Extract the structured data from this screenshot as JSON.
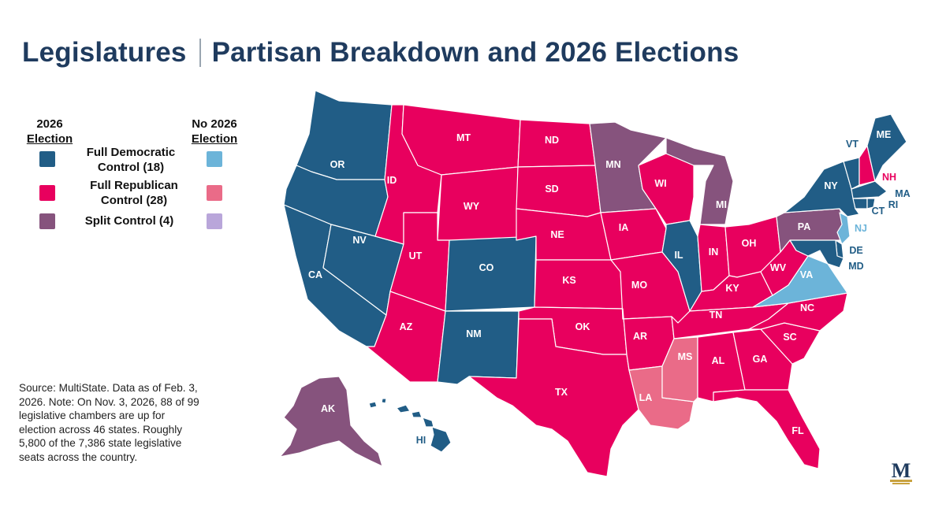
{
  "header": {
    "title_left": "Legislatures",
    "title_right": "Partisan Breakdown and 2026 Elections"
  },
  "legend": {
    "col1_header": [
      "2026",
      "Election"
    ],
    "col2_header": [
      "No 2026",
      "Election"
    ],
    "items": [
      {
        "label_lines": [
          "Full Democratic",
          "Control (18)"
        ],
        "color_election": "#215d86",
        "color_no_election": "#6cb4d9"
      },
      {
        "label_lines": [
          "Full Republican",
          "Control (28)"
        ],
        "color_election": "#e8005e",
        "color_no_election": "#ea6b88"
      },
      {
        "label_lines": [
          "Split Control (4)"
        ],
        "color_election": "#86537d",
        "color_no_election": "#b9a6da"
      }
    ]
  },
  "source_lines": [
    "Source: MultiState. Data as of Feb. 3,",
    "2026. Note: On Nov. 3, 2026, 88 of 99",
    "legislative chambers are up for",
    "election across 46 states.  Roughly",
    "5,800 of the 7,386 state legislative",
    "seats across the country."
  ],
  "colors": {
    "dem": "#215d86",
    "rep": "#e8005e",
    "split": "#86537d",
    "dem_no": "#6cb4d9",
    "rep_no": "#ea6b88",
    "split_no": "#b9a6da",
    "title": "#1f3b5e",
    "logo_gold": "#c9a23f"
  },
  "logo_letter": "M",
  "states": [
    {
      "abbr": "WA",
      "control": "dem",
      "label": ""
    },
    {
      "abbr": "OR",
      "control": "dem",
      "label": "OR"
    },
    {
      "abbr": "CA",
      "control": "dem",
      "label": "CA"
    },
    {
      "abbr": "NV",
      "control": "dem",
      "label": "NV"
    },
    {
      "abbr": "ID",
      "control": "rep",
      "label": "ID"
    },
    {
      "abbr": "MT",
      "control": "rep",
      "label": "MT"
    },
    {
      "abbr": "WY",
      "control": "rep",
      "label": "WY"
    },
    {
      "abbr": "UT",
      "control": "rep",
      "label": "UT"
    },
    {
      "abbr": "AZ",
      "control": "rep",
      "label": "AZ"
    },
    {
      "abbr": "CO",
      "control": "dem",
      "label": "CO"
    },
    {
      "abbr": "NM",
      "control": "dem",
      "label": "NM"
    },
    {
      "abbr": "ND",
      "control": "rep",
      "label": "ND"
    },
    {
      "abbr": "SD",
      "control": "rep",
      "label": "SD"
    },
    {
      "abbr": "NE",
      "control": "rep",
      "label": "NE"
    },
    {
      "abbr": "KS",
      "control": "rep",
      "label": "KS"
    },
    {
      "abbr": "OK",
      "control": "rep",
      "label": "OK"
    },
    {
      "abbr": "TX",
      "control": "rep",
      "label": "TX"
    },
    {
      "abbr": "MN",
      "control": "split",
      "label": "MN"
    },
    {
      "abbr": "IA",
      "control": "rep",
      "label": "IA"
    },
    {
      "abbr": "MO",
      "control": "rep",
      "label": "MO"
    },
    {
      "abbr": "AR",
      "control": "rep",
      "label": "AR"
    },
    {
      "abbr": "LA",
      "control": "rep_no",
      "label": "LA"
    },
    {
      "abbr": "WI",
      "control": "rep",
      "label": "WI"
    },
    {
      "abbr": "IL",
      "control": "dem",
      "label": "IL"
    },
    {
      "abbr": "MI",
      "control": "split",
      "label": "MI"
    },
    {
      "abbr": "IN",
      "control": "rep",
      "label": "IN"
    },
    {
      "abbr": "OH",
      "control": "rep",
      "label": "OH"
    },
    {
      "abbr": "KY",
      "control": "rep",
      "label": "KY"
    },
    {
      "abbr": "TN",
      "control": "rep",
      "label": "TN"
    },
    {
      "abbr": "MS",
      "control": "rep_no",
      "label": "MS"
    },
    {
      "abbr": "AL",
      "control": "rep",
      "label": "AL"
    },
    {
      "abbr": "GA",
      "control": "rep",
      "label": "GA"
    },
    {
      "abbr": "FL",
      "control": "rep",
      "label": "FL"
    },
    {
      "abbr": "SC",
      "control": "rep",
      "label": "SC"
    },
    {
      "abbr": "NC",
      "control": "rep",
      "label": "NC"
    },
    {
      "abbr": "VA",
      "control": "dem_no",
      "label": "VA"
    },
    {
      "abbr": "WV",
      "control": "rep",
      "label": "WV"
    },
    {
      "abbr": "PA",
      "control": "split",
      "label": "PA"
    },
    {
      "abbr": "NY",
      "control": "dem",
      "label": "NY"
    },
    {
      "abbr": "VT",
      "control": "dem",
      "label": "VT"
    },
    {
      "abbr": "NH",
      "control": "rep",
      "label": "NH"
    },
    {
      "abbr": "ME",
      "control": "dem",
      "label": "ME"
    },
    {
      "abbr": "MA",
      "control": "dem",
      "label": "MA"
    },
    {
      "abbr": "RI",
      "control": "dem",
      "label": "RI"
    },
    {
      "abbr": "CT",
      "control": "dem",
      "label": "CT"
    },
    {
      "abbr": "NJ",
      "control": "dem_no",
      "label": "NJ"
    },
    {
      "abbr": "DE",
      "control": "dem",
      "label": "DE"
    },
    {
      "abbr": "MD",
      "control": "dem",
      "label": "MD"
    },
    {
      "abbr": "AK",
      "control": "split",
      "label": "AK"
    },
    {
      "abbr": "HI",
      "control": "dem",
      "label": "HI"
    }
  ]
}
